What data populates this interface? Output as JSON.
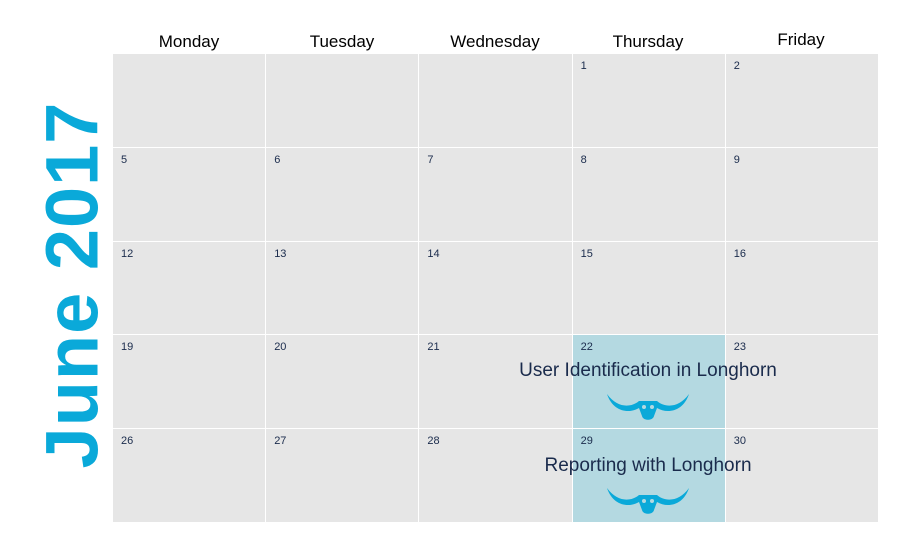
{
  "calendar": {
    "title": "June 2017",
    "accent_color": "#0aa9d9",
    "weekdays": [
      "Monday",
      "Tuesday",
      "Wednesday",
      "Thursday",
      "Friday"
    ],
    "weeks": [
      [
        "",
        "",
        "",
        "1",
        "2"
      ],
      [
        "5",
        "6",
        "7",
        "8",
        "9"
      ],
      [
        "12",
        "13",
        "14",
        "15",
        "16"
      ],
      [
        "19",
        "20",
        "21",
        "22",
        "23"
      ],
      [
        "26",
        "27",
        "28",
        "29",
        "30"
      ]
    ],
    "events": [
      {
        "date": "22",
        "title": "User Identification in Longhorn",
        "icon": "longhorn-icon"
      },
      {
        "date": "29",
        "title": "Reporting with Longhorn",
        "icon": "longhorn-icon"
      }
    ]
  }
}
